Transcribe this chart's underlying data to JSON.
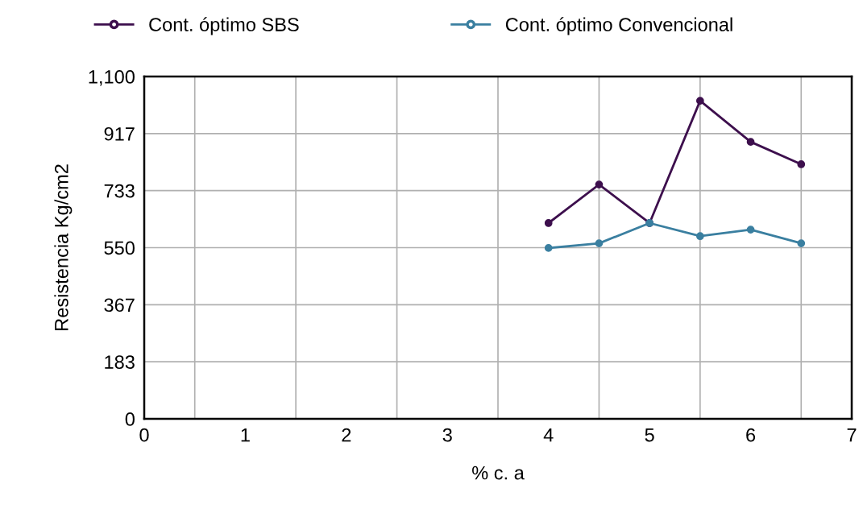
{
  "chart_data": {
    "type": "line",
    "xlabel": "% c. a",
    "ylabel": "Resistencia Kg/cm2",
    "x": [
      4,
      4.5,
      5,
      5.5,
      6,
      6.5
    ],
    "series": [
      {
        "name": "Cont. óptimo SBS",
        "color": "#3d0f4d",
        "values": [
          629,
          753,
          629,
          1022,
          890,
          818
        ]
      },
      {
        "name": "Cont. óptimo Convencional",
        "color": "#3a7fa0",
        "values": [
          549,
          564,
          629,
          587,
          608,
          564
        ]
      }
    ],
    "xlim": [
      0,
      7
    ],
    "xticks": [
      0,
      1,
      2,
      3,
      4,
      5,
      6,
      7,
      {
        "value": 0.5,
        "label": null
      },
      {
        "value": 1.5,
        "label": null
      },
      {
        "value": 2.5,
        "label": null
      },
      {
        "value": 3.5,
        "label": null
      },
      {
        "value": 4.5,
        "label": null
      },
      {
        "value": 5.5,
        "label": null
      },
      {
        "value": 6.5,
        "label": null
      }
    ],
    "ylim": [
      0,
      1100
    ],
    "yticks": [
      0,
      {
        "value": 183.333,
        "label": "183"
      },
      {
        "value": 366.667,
        "label": "367"
      },
      550,
      {
        "value": 733.333,
        "label": "733"
      },
      {
        "value": 916.667,
        "label": "917"
      },
      {
        "value": 1100,
        "label": "1,100"
      }
    ],
    "grid": true,
    "legend": "top",
    "marker": "circle",
    "line_style": "solid"
  }
}
